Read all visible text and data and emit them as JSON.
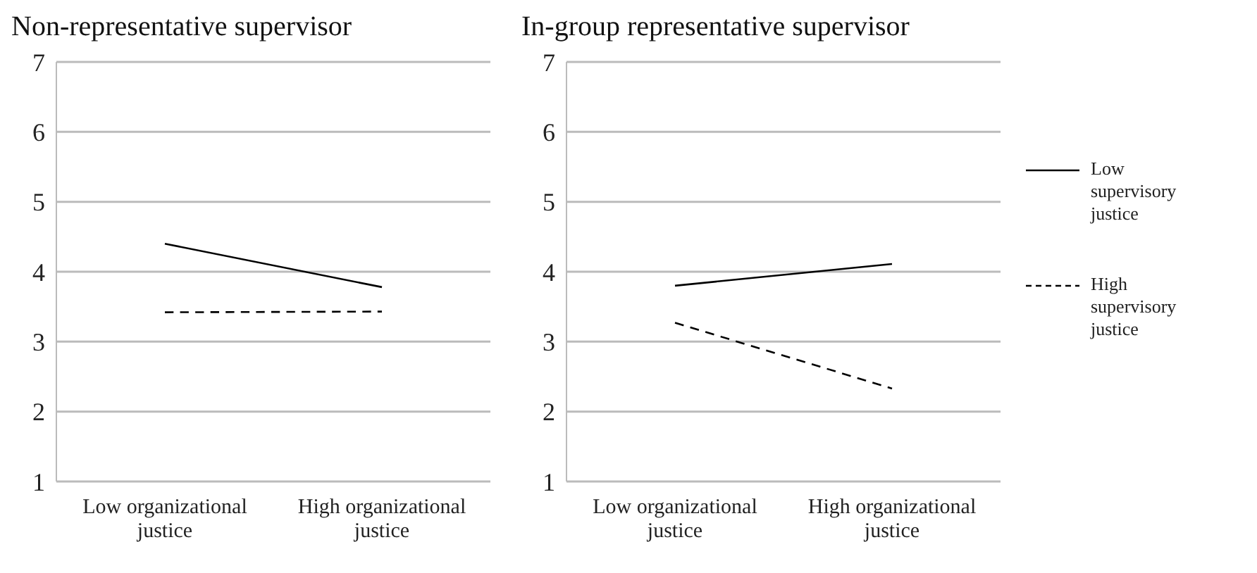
{
  "chart_data": [
    {
      "type": "line",
      "title": "Non-representative supervisor",
      "categories": [
        "Low organizational justice",
        "High organizational justice"
      ],
      "ylim": [
        1,
        7
      ],
      "yticks": [
        1,
        2,
        3,
        4,
        5,
        6,
        7
      ],
      "grid": "y",
      "marker": "none",
      "legend": false,
      "series": [
        {
          "color": "#000000",
          "line_style": "solid",
          "values": [
            4.4,
            3.78
          ]
        },
        {
          "color": "#000000",
          "line_style": "dashed",
          "values": [
            3.42,
            3.43
          ]
        }
      ]
    },
    {
      "type": "line",
      "title": "In-group representative supervisor",
      "categories": [
        "Low organizational justice",
        "High organizational justice"
      ],
      "ylim": [
        1,
        7
      ],
      "yticks": [
        1,
        2,
        3,
        4,
        5,
        6,
        7
      ],
      "grid": "y",
      "marker": "none",
      "legend": "right",
      "series": [
        {
          "name": "Low supervisory justice",
          "color": "#000000",
          "line_style": "solid",
          "values": [
            3.8,
            4.11
          ]
        },
        {
          "name": "High supervisory justice",
          "color": "#000000",
          "line_style": "dashed",
          "values": [
            3.27,
            2.33
          ]
        }
      ]
    }
  ]
}
